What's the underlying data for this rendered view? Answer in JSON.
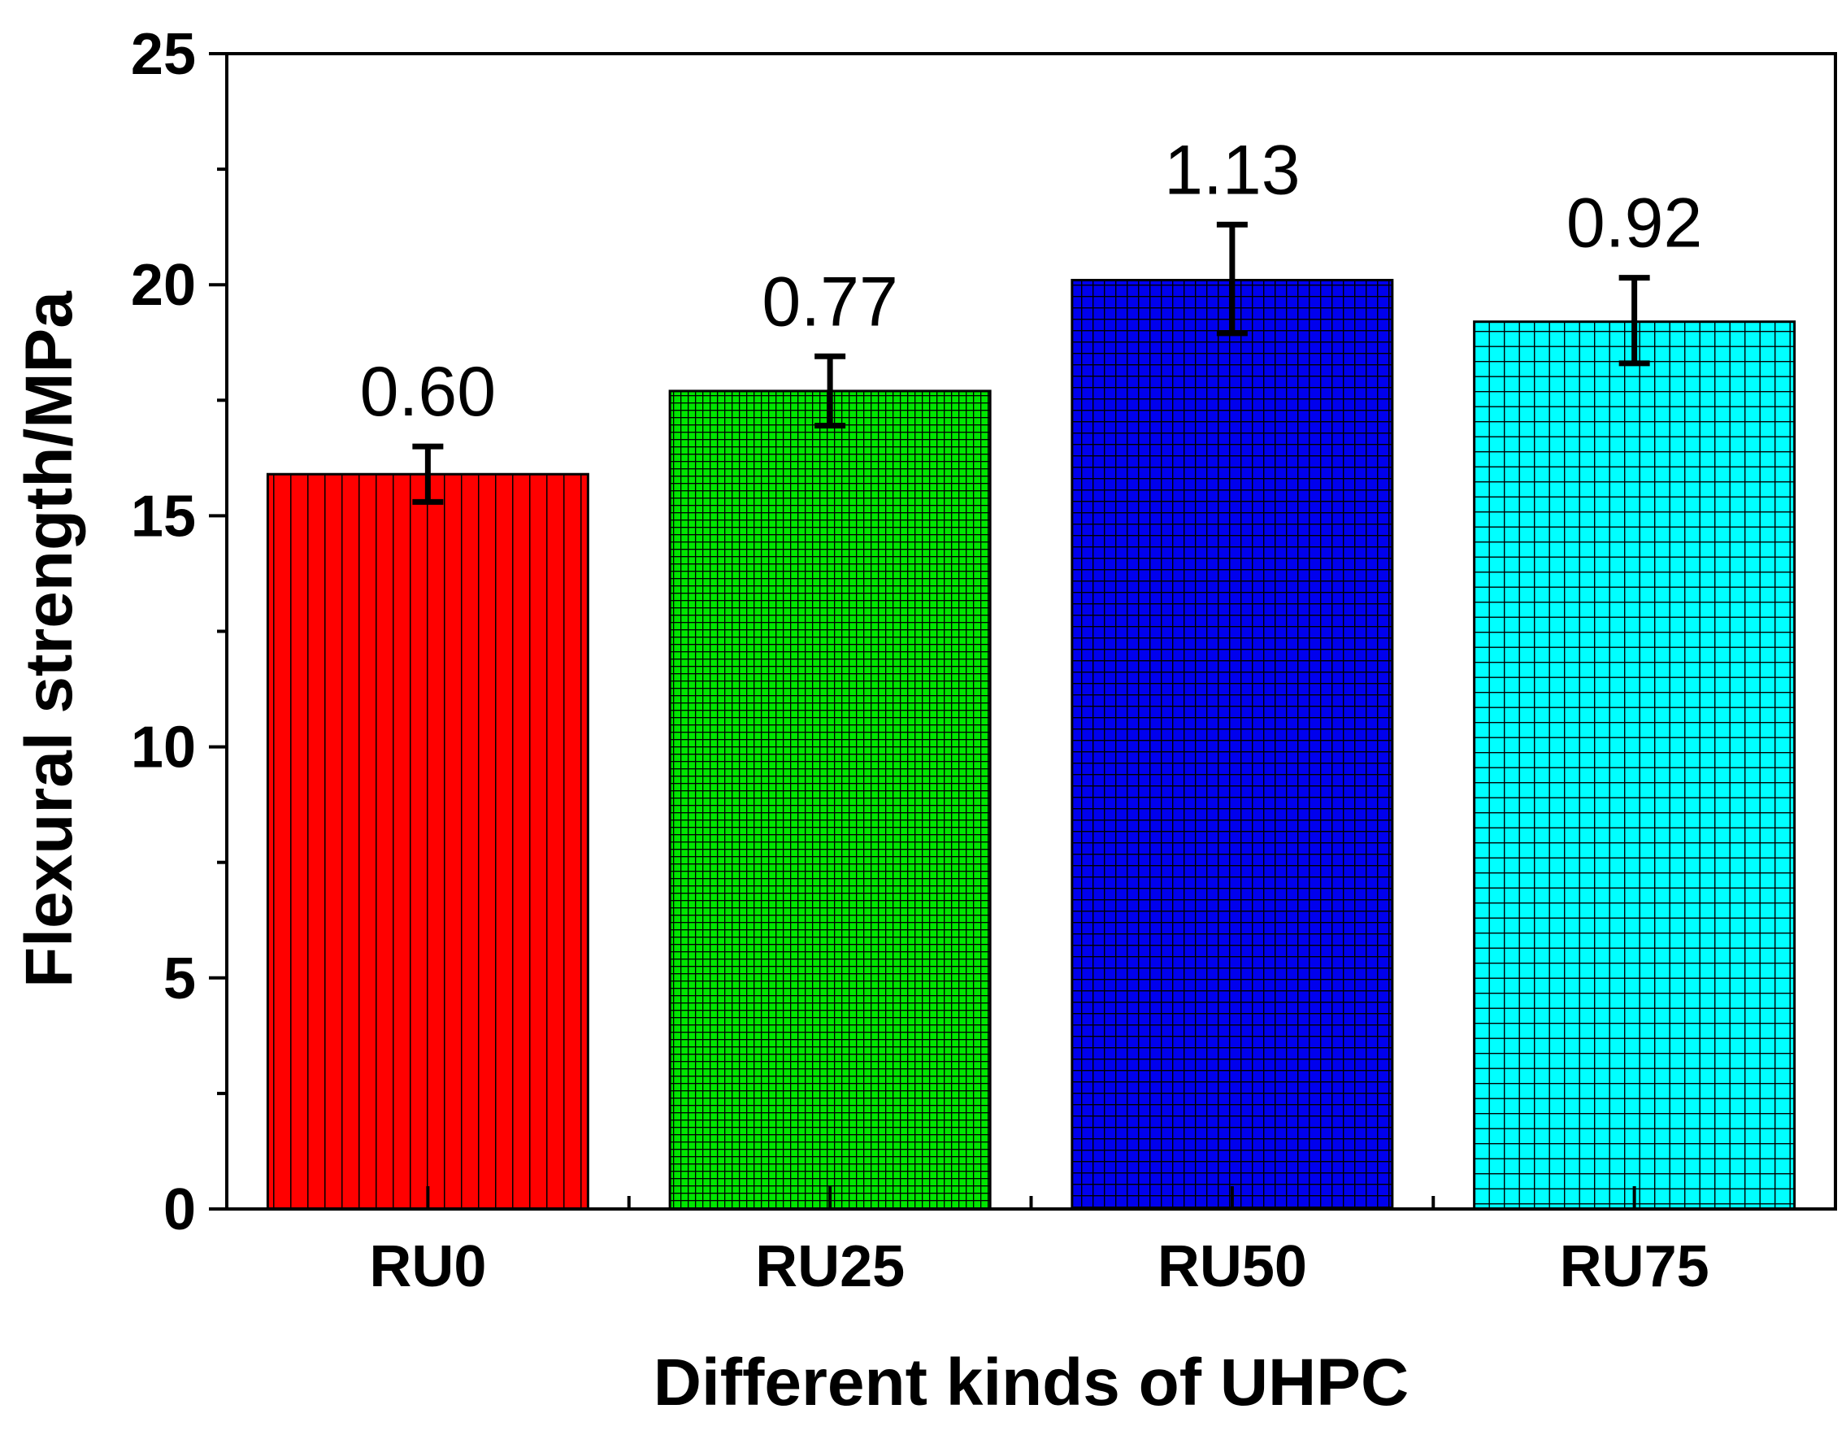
{
  "chart_data": {
    "type": "bar",
    "title": "",
    "xlabel": "Different kinds  of UHPC",
    "ylabel": "Flexural strength/MPa",
    "ylim": [
      0,
      25
    ],
    "yticks": [
      "0",
      "5",
      "10",
      "15",
      "20",
      "25"
    ],
    "categories": [
      "RU0",
      "RU25",
      "RU50",
      "RU75"
    ],
    "values": [
      15.9,
      17.7,
      20.1,
      19.2
    ],
    "error_upper": [
      16.5,
      18.45,
      21.3,
      20.15
    ],
    "error_lower": [
      15.3,
      16.95,
      18.95,
      18.3
    ],
    "data_labels": [
      "0.60",
      "0.77",
      "1.13",
      "0.92"
    ],
    "colors": [
      "#ff0000",
      "#00e600",
      "#0000ee",
      "#00ffff"
    ],
    "patterns": [
      "vertical-lines",
      "fine-grid",
      "medium-grid",
      "coarse-grid"
    ],
    "grid": false,
    "legend": "none"
  }
}
